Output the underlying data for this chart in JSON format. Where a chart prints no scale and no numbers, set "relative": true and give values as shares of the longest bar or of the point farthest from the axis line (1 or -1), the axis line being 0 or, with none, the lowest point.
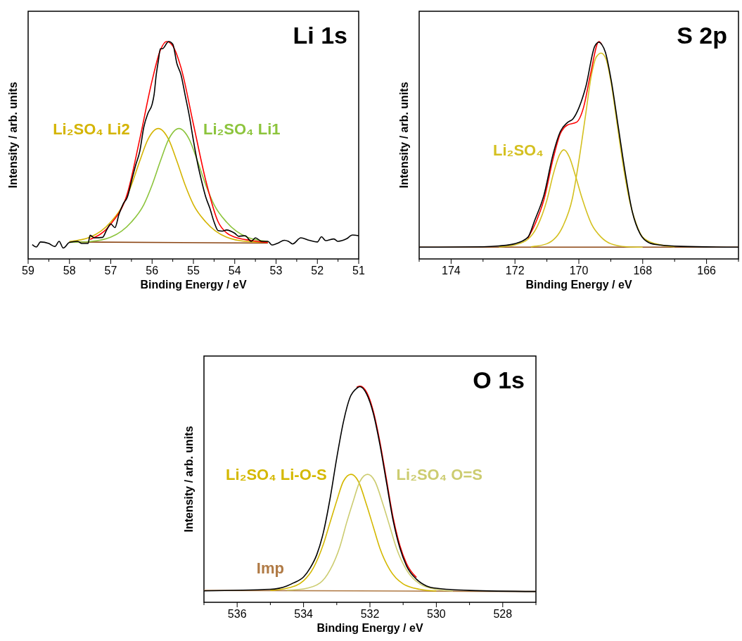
{
  "chart_data": [
    {
      "type": "line",
      "title": "Li 1s",
      "xlabel": "Binding Energy / eV",
      "ylabel": "Intensity / arb. units",
      "relative": true,
      "xlim": [
        59,
        51
      ],
      "xticks": [
        59,
        {
          "value": 58.5,
          "label": null
        },
        58,
        {
          "value": 57.5,
          "label": null
        },
        57,
        {
          "value": 56.5,
          "label": null
        },
        56,
        {
          "value": 55.5,
          "label": null
        },
        55,
        {
          "value": 54.5,
          "label": null
        },
        54,
        {
          "value": 53.5,
          "label": null
        },
        53,
        {
          "value": 52.5,
          "label": null
        },
        52,
        {
          "value": 51.5,
          "label": null
        },
        51
      ],
      "series": [
        {
          "color": "#8b4513",
          "x": [
            58.0,
            53.2
          ],
          "values": [
            0.078,
            0.073
          ]
        },
        {
          "name": "Li₂SO₄ Li2",
          "color": "#d4b400",
          "x": [
            58.0,
            57.5,
            57.0,
            56.7,
            56.5,
            56.3,
            56.1,
            55.85,
            55.6,
            55.4,
            55.2,
            55.0,
            54.7,
            54.2,
            53.7,
            53.2
          ],
          "values": [
            0.08,
            0.1,
            0.17,
            0.25,
            0.34,
            0.45,
            0.55,
            0.6,
            0.55,
            0.45,
            0.34,
            0.25,
            0.17,
            0.1,
            0.08,
            0.076
          ]
        },
        {
          "name": "Li₂SO₄ Li1",
          "color": "#8cc43c",
          "x": [
            58.0,
            57.5,
            57.0,
            56.5,
            56.2,
            56.0,
            55.8,
            55.6,
            55.35,
            55.1,
            54.9,
            54.7,
            54.5,
            54.2,
            53.7,
            53.2
          ],
          "values": [
            0.076,
            0.08,
            0.1,
            0.17,
            0.25,
            0.34,
            0.45,
            0.55,
            0.6,
            0.55,
            0.45,
            0.34,
            0.25,
            0.17,
            0.1,
            0.08
          ]
        },
        {
          "color": "#ff0000",
          "x": [
            57.5,
            57.0,
            56.6,
            56.3,
            56.0,
            55.8,
            55.65,
            55.5,
            55.3,
            55.0,
            54.7,
            54.4,
            54.2,
            54.0,
            53.6,
            53.2
          ],
          "values": [
            0.09,
            0.16,
            0.3,
            0.55,
            0.82,
            0.96,
            1.0,
            0.98,
            0.88,
            0.62,
            0.36,
            0.17,
            0.12,
            0.1,
            0.085,
            0.075
          ]
        },
        {
          "color": "#000000",
          "x": [
            58.9,
            58.8,
            58.7,
            58.5,
            58.35,
            58.25,
            58.15,
            58.0,
            57.8,
            57.7,
            57.55,
            57.5,
            57.4,
            57.2,
            57.1,
            57.0,
            56.9,
            56.8,
            56.7,
            56.6,
            56.5,
            56.4,
            56.3,
            56.2,
            56.1,
            56.0,
            55.95,
            55.9,
            55.85,
            55.8,
            55.75,
            55.6,
            55.5,
            55.4,
            55.3,
            55.2,
            55.1,
            55.0,
            54.9,
            54.8,
            54.7,
            54.6,
            54.5,
            54.4,
            54.3,
            54.2,
            54.0,
            53.9,
            53.75,
            53.6,
            53.5,
            53.35,
            53.2,
            53.1,
            52.95,
            52.8,
            52.7,
            52.6,
            52.4,
            52.2,
            52.0,
            51.9,
            51.8,
            51.6,
            51.5,
            51.3,
            51.15,
            51.0
          ],
          "values": [
            0.066,
            0.055,
            0.078,
            0.071,
            0.057,
            0.081,
            0.05,
            0.076,
            0.081,
            0.071,
            0.071,
            0.109,
            0.097,
            0.099,
            0.133,
            0.161,
            0.144,
            0.206,
            0.253,
            0.284,
            0.357,
            0.43,
            0.493,
            0.607,
            0.67,
            0.711,
            0.758,
            0.847,
            0.909,
            0.967,
            0.967,
            1.0,
            0.988,
            0.899,
            0.847,
            0.753,
            0.659,
            0.545,
            0.441,
            0.357,
            0.284,
            0.232,
            0.17,
            0.13,
            0.128,
            0.133,
            0.118,
            0.104,
            0.107,
            0.081,
            0.097,
            0.081,
            0.081,
            0.064,
            0.073,
            0.086,
            0.081,
            0.069,
            0.097,
            0.086,
            0.078,
            0.102,
            0.084,
            0.092,
            0.081,
            0.092,
            0.11,
            0.107
          ]
        }
      ]
    },
    {
      "type": "line",
      "title": "S 2p",
      "xlabel": "Binding Energy / eV",
      "ylabel": "Intensity / arb. units",
      "relative": true,
      "xlim": [
        175,
        165
      ],
      "xticks": [
        {
          "value": 175,
          "label": null
        },
        174,
        {
          "value": 173,
          "label": null
        },
        172,
        {
          "value": 171,
          "label": null
        },
        170,
        {
          "value": 169,
          "label": null
        },
        168,
        {
          "value": 167,
          "label": null
        },
        166,
        {
          "value": 165,
          "label": null
        }
      ],
      "series": [
        {
          "color": "#8b4513",
          "x": [
            175,
            165
          ],
          "values": [
            0.054,
            0.054
          ]
        },
        {
          "name": "Li₂SO₄",
          "color": "#d4c020",
          "x": [
            172.5,
            172,
            171.6,
            171.3,
            171.0,
            170.8,
            170.6,
            170.47,
            170.3,
            170.1,
            169.9,
            169.6,
            169.3,
            169.0,
            168.5,
            168
          ],
          "values": [
            0.055,
            0.065,
            0.09,
            0.15,
            0.27,
            0.39,
            0.48,
            0.502,
            0.47,
            0.38,
            0.28,
            0.16,
            0.1,
            0.07,
            0.056,
            0.054
          ]
        },
        {
          "color": "#d4c020",
          "x": [
            171.5,
            171,
            170.5,
            170.2,
            170.0,
            169.8,
            169.6,
            169.45,
            169.3,
            169.15,
            169.0,
            168.8,
            168.6,
            168.4,
            168.2,
            168.0,
            167.6,
            167.0
          ],
          "values": [
            0.056,
            0.07,
            0.15,
            0.28,
            0.45,
            0.65,
            0.85,
            0.93,
            0.947,
            0.92,
            0.82,
            0.62,
            0.42,
            0.26,
            0.16,
            0.1,
            0.07,
            0.056
          ]
        },
        {
          "color": "#ff0000",
          "x": [
            171.6,
            171.38,
            171.09,
            170.8,
            170.58,
            170.36,
            170.07,
            169.85,
            169.64,
            169.37,
            169.28
          ],
          "values": [
            0.095,
            0.157,
            0.274,
            0.464,
            0.576,
            0.616,
            0.629,
            0.698,
            0.846,
            1.0,
            0.986
          ]
        },
        {
          "color": "#000000",
          "x": [
            175,
            173,
            172.5,
            172,
            171.6,
            171.38,
            171.09,
            170.8,
            170.58,
            170.36,
            170.18,
            169.99,
            169.78,
            169.5,
            169.37,
            169.28,
            169.17,
            168.99,
            168.77,
            168.55,
            168.33,
            168.08,
            167.79,
            167.46,
            166.81,
            165
          ],
          "values": [
            0.054,
            0.056,
            0.06,
            0.07,
            0.099,
            0.178,
            0.295,
            0.486,
            0.586,
            0.627,
            0.645,
            0.698,
            0.793,
            0.979,
            0.997,
            0.986,
            0.952,
            0.825,
            0.613,
            0.4,
            0.22,
            0.115,
            0.074,
            0.064,
            0.058,
            0.054
          ]
        }
      ]
    },
    {
      "type": "line",
      "title": "O 1s",
      "xlabel": "Binding Energy / eV",
      "ylabel": "Intensity / arb. units",
      "relative": true,
      "xlim": [
        537,
        527
      ],
      "xticks": [
        {
          "value": 537,
          "label": null
        },
        536,
        {
          "value": 535,
          "label": null
        },
        534,
        {
          "value": 533,
          "label": null
        },
        532,
        {
          "value": 531,
          "label": null
        },
        530,
        {
          "value": 529,
          "label": null
        },
        528,
        {
          "value": 527,
          "label": null
        }
      ],
      "series": [
        {
          "name": "Imp",
          "color": "#b07a45",
          "x": [
            537,
            531,
            527
          ],
          "values": [
            0.055,
            0.052,
            0.05
          ]
        },
        {
          "name": "Li₂SO₄ Li-O-S",
          "color": "#d4b800",
          "x": [
            535,
            534.5,
            534.0,
            533.7,
            533.4,
            533.2,
            533.0,
            532.8,
            532.57,
            532.35,
            532.1,
            531.9,
            531.7,
            531.4,
            531.0,
            530.5,
            530
          ],
          "values": [
            0.055,
            0.065,
            0.1,
            0.16,
            0.27,
            0.37,
            0.47,
            0.56,
            0.592,
            0.56,
            0.45,
            0.35,
            0.25,
            0.15,
            0.085,
            0.06,
            0.052
          ]
        },
        {
          "name": "Li₂SO₄ O=S",
          "color": "#cccc70",
          "x": [
            534.5,
            534,
            533.5,
            533.2,
            532.9,
            532.7,
            532.5,
            532.3,
            532.07,
            531.85,
            531.6,
            531.4,
            531.2,
            530.9,
            530.5,
            530,
            529.5
          ],
          "values": [
            0.056,
            0.062,
            0.09,
            0.15,
            0.26,
            0.37,
            0.47,
            0.56,
            0.592,
            0.56,
            0.45,
            0.35,
            0.25,
            0.15,
            0.085,
            0.06,
            0.052
          ]
        },
        {
          "color": "#ff0000",
          "x": [
            532.4,
            532.3,
            532.1,
            531.9,
            531.7,
            531.5,
            531.3,
            531.1,
            530.9,
            530.6
          ],
          "values": [
            0.995,
            1.0,
            0.972,
            0.885,
            0.742,
            0.566,
            0.39,
            0.264,
            0.18,
            0.115
          ]
        },
        {
          "color": "#000000",
          "x": [
            537,
            535,
            534.5,
            534.3,
            534.0,
            533.8,
            533.6,
            533.4,
            533.2,
            533.0,
            532.8,
            532.6,
            532.4,
            532.3,
            532.1,
            531.9,
            531.7,
            531.5,
            531.3,
            531.1,
            530.9,
            530.6,
            530.3,
            530.0,
            529,
            527
          ],
          "values": [
            0.053,
            0.06,
            0.076,
            0.09,
            0.117,
            0.159,
            0.221,
            0.325,
            0.481,
            0.668,
            0.834,
            0.948,
            0.99,
            0.998,
            0.964,
            0.875,
            0.73,
            0.553,
            0.377,
            0.252,
            0.169,
            0.107,
            0.076,
            0.065,
            0.055,
            0.05
          ]
        }
      ]
    }
  ]
}
